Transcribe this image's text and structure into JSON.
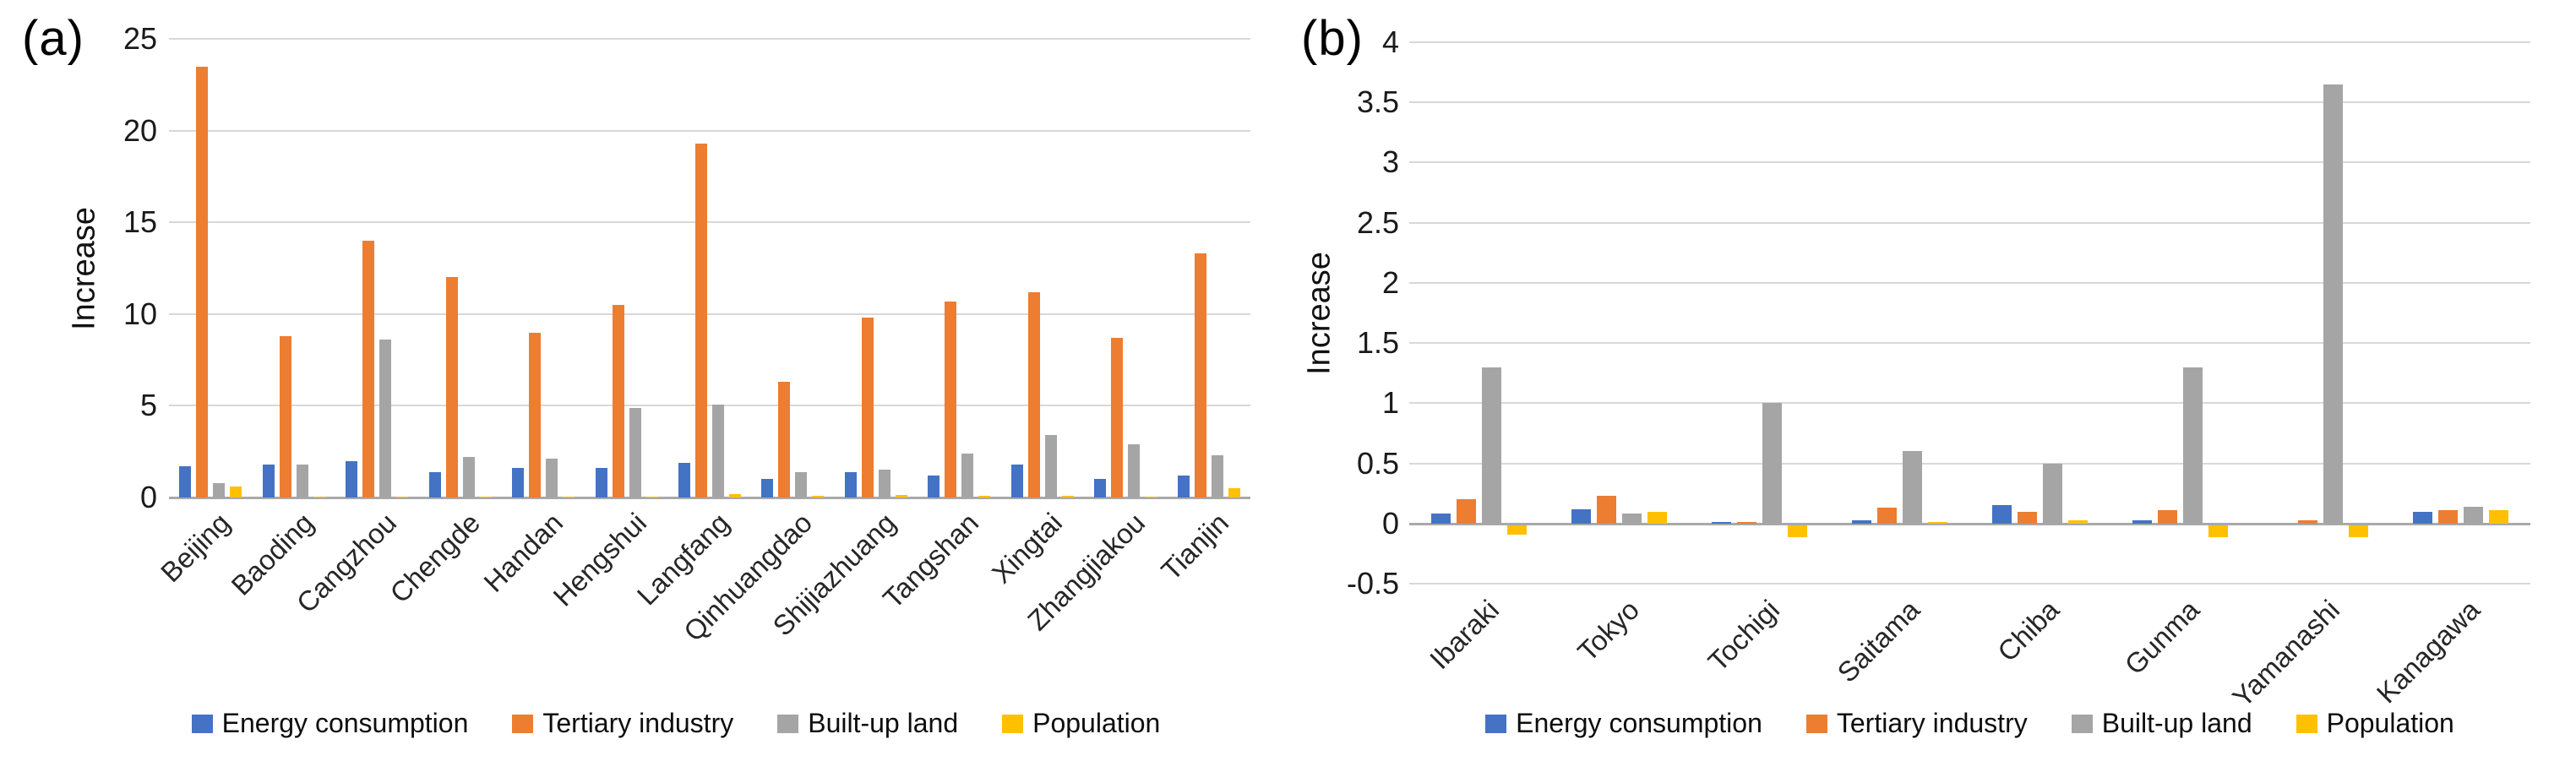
{
  "chart_data": [
    {
      "type": "bar",
      "panel_label": "(a)",
      "ylabel": "Increase",
      "ylim": [
        0,
        25
      ],
      "y_ticks": [
        "0",
        "5",
        "10",
        "15",
        "20",
        "25"
      ],
      "grid": true,
      "legend_position": "bottom",
      "categories": [
        "Beijing",
        "Baoding",
        "Cangzhou",
        "Chengde",
        "Handan",
        "Hengshui",
        "Langfang",
        "Qinhuangdao",
        "Shijiazhuang",
        "Tangshan",
        "Xingtai",
        "Zhangjiakou",
        "Tianjin"
      ],
      "series": [
        {
          "name": "Energy consumption",
          "color": "#4472C4",
          "values": [
            1.7,
            1.8,
            2.0,
            1.4,
            1.6,
            1.6,
            1.9,
            1.0,
            1.4,
            1.2,
            1.8,
            1.0,
            1.2
          ]
        },
        {
          "name": "Tertiary industry",
          "color": "#ED7D31",
          "values": [
            23.5,
            8.8,
            14.0,
            12.0,
            9.0,
            10.5,
            19.3,
            6.3,
            9.8,
            10.7,
            11.2,
            8.7,
            13.3
          ]
        },
        {
          "name": "Built-up land",
          "color": "#A5A5A5",
          "values": [
            0.8,
            1.8,
            8.6,
            2.2,
            2.1,
            4.9,
            5.05,
            1.4,
            1.5,
            2.4,
            3.4,
            2.9,
            2.3
          ]
        },
        {
          "name": "Population",
          "color": "#FFC000",
          "values": [
            0.6,
            0.05,
            0.05,
            0.05,
            0.05,
            0.05,
            0.2,
            0.1,
            0.15,
            0.08,
            0.1,
            0.05,
            0.5
          ]
        }
      ]
    },
    {
      "type": "bar",
      "panel_label": "(b)",
      "ylabel": "Increase",
      "ylim": [
        -0.5,
        4
      ],
      "y_ticks": [
        "-0.5",
        "0",
        "0.5",
        "1",
        "1.5",
        "2",
        "2.5",
        "3",
        "3.5",
        "4"
      ],
      "grid": true,
      "legend_position": "bottom",
      "categories": [
        "Ibaraki",
        "Tokyo",
        "Tochigi",
        "Saitama",
        "Chiba",
        "Gunma",
        "Yamanashi",
        "Kanagawa"
      ],
      "series": [
        {
          "name": "Energy consumption",
          "color": "#4472C4",
          "values": [
            0.08,
            0.12,
            0.01,
            0.03,
            0.15,
            0.03,
            0.0,
            0.1
          ]
        },
        {
          "name": "Tertiary industry",
          "color": "#ED7D31",
          "values": [
            0.2,
            0.23,
            0.01,
            0.13,
            0.1,
            0.11,
            0.03,
            0.11
          ]
        },
        {
          "name": "Built-up land",
          "color": "#A5A5A5",
          "values": [
            1.3,
            0.08,
            1.0,
            0.6,
            0.5,
            1.3,
            3.65,
            0.14
          ]
        },
        {
          "name": "Population",
          "color": "#FFC000",
          "values": [
            -0.08,
            0.1,
            -0.1,
            0.01,
            0.03,
            -0.1,
            -0.1,
            0.11
          ]
        }
      ]
    }
  ]
}
